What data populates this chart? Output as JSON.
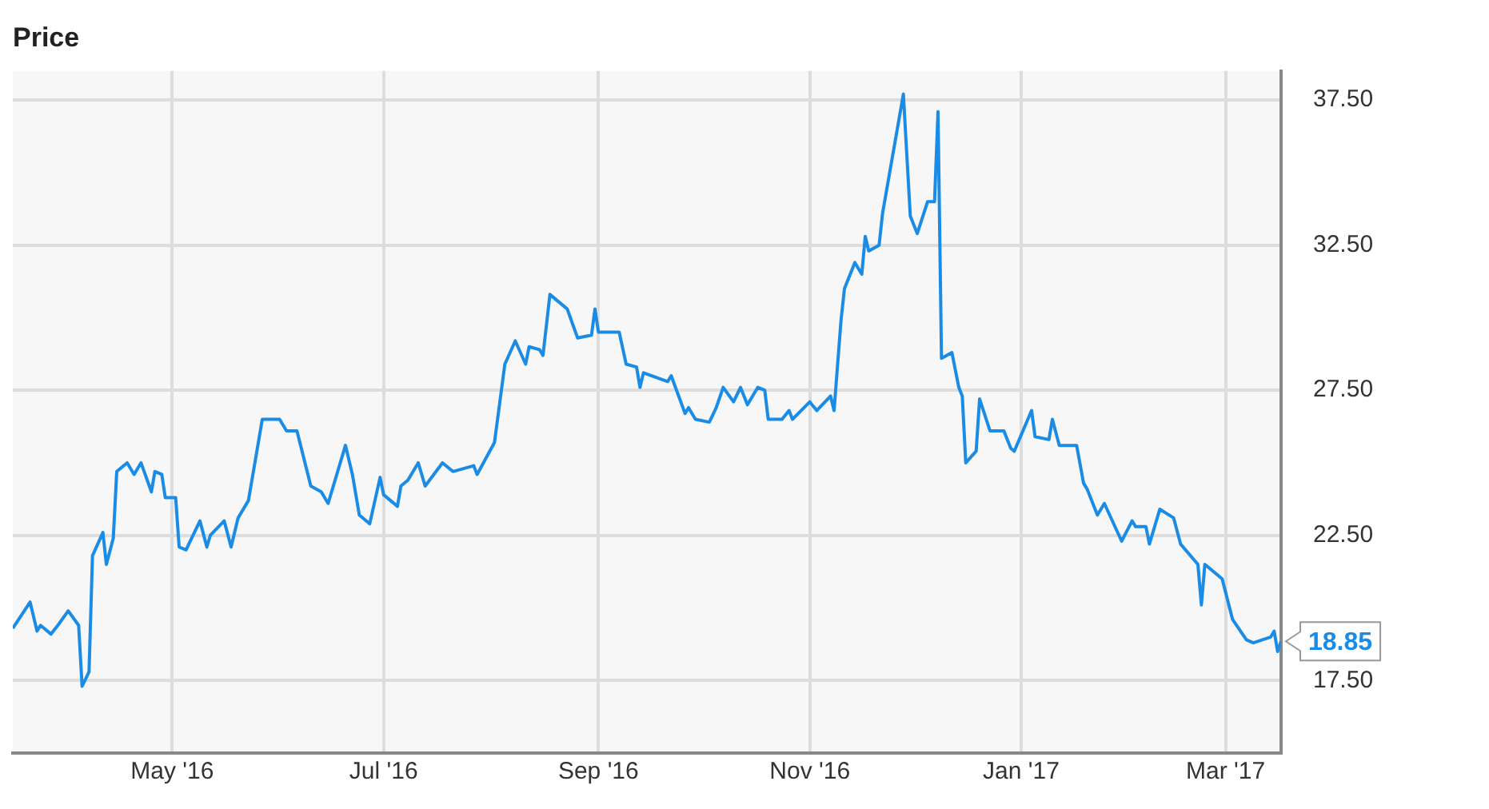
{
  "chart_data": {
    "type": "line",
    "title": "Price",
    "x": [
      "2016-03-16",
      "2016-03-21",
      "2016-03-23",
      "2016-03-24",
      "2016-03-27",
      "2016-03-29",
      "2016-04-01",
      "2016-04-04",
      "2016-04-05",
      "2016-04-07",
      "2016-04-08",
      "2016-04-11",
      "2016-04-12",
      "2016-04-14",
      "2016-04-15",
      "2016-04-18",
      "2016-04-20",
      "2016-04-22",
      "2016-04-25",
      "2016-04-26",
      "2016-04-28",
      "2016-04-29",
      "2016-05-02",
      "2016-05-03",
      "2016-05-05",
      "2016-05-09",
      "2016-05-11",
      "2016-05-12",
      "2016-05-16",
      "2016-05-18",
      "2016-05-20",
      "2016-05-23",
      "2016-05-25",
      "2016-05-27",
      "2016-06-01",
      "2016-06-03",
      "2016-06-06",
      "2016-06-10",
      "2016-06-13",
      "2016-06-15",
      "2016-06-20",
      "2016-06-22",
      "2016-06-24",
      "2016-06-27",
      "2016-06-30",
      "2016-07-01",
      "2016-07-05",
      "2016-07-06",
      "2016-07-08",
      "2016-07-11",
      "2016-07-13",
      "2016-07-18",
      "2016-07-21",
      "2016-07-27",
      "2016-07-28",
      "2016-08-02",
      "2016-08-05",
      "2016-08-08",
      "2016-08-11",
      "2016-08-12",
      "2016-08-15",
      "2016-08-16",
      "2016-08-18",
      "2016-08-22",
      "2016-08-23",
      "2016-08-26",
      "2016-08-30",
      "2016-08-31",
      "2016-09-01",
      "2016-09-07",
      "2016-09-09",
      "2016-09-12",
      "2016-09-13",
      "2016-09-14",
      "2016-09-21",
      "2016-09-22",
      "2016-09-26",
      "2016-09-27",
      "2016-09-29",
      "2016-10-03",
      "2016-10-05",
      "2016-10-07",
      "2016-10-10",
      "2016-10-12",
      "2016-10-14",
      "2016-10-17",
      "2016-10-19",
      "2016-10-20",
      "2016-10-24",
      "2016-10-26",
      "2016-10-27",
      "2016-11-01",
      "2016-11-03",
      "2016-11-07",
      "2016-11-08",
      "2016-11-10",
      "2016-11-11",
      "2016-11-14",
      "2016-11-16",
      "2016-11-17",
      "2016-11-18",
      "2016-11-21",
      "2016-11-22",
      "2016-11-28",
      "2016-11-30",
      "2016-12-02",
      "2016-12-05",
      "2016-12-07",
      "2016-12-08",
      "2016-12-09",
      "2016-12-12",
      "2016-12-14",
      "2016-12-15",
      "2016-12-16",
      "2016-12-19",
      "2016-12-20",
      "2016-12-23",
      "2016-12-27",
      "2016-12-29",
      "2016-12-30",
      "2017-01-04",
      "2017-01-05",
      "2017-01-09",
      "2017-01-10",
      "2017-01-12",
      "2017-01-17",
      "2017-01-19",
      "2017-01-20",
      "2017-01-23",
      "2017-01-25",
      "2017-01-30",
      "2017-02-02",
      "2017-02-03",
      "2017-02-06",
      "2017-02-07",
      "2017-02-10",
      "2017-02-14",
      "2017-02-16",
      "2017-02-21",
      "2017-02-22",
      "2017-02-23",
      "2017-02-28",
      "2017-03-03",
      "2017-03-07",
      "2017-03-09",
      "2017-03-14",
      "2017-03-15",
      "2017-03-16",
      "2017-03-17"
    ],
    "series": [
      {
        "color": "#1a8ce6",
        "values": [
          19.3,
          20.2,
          19.2,
          19.4,
          19.1,
          19.4,
          19.9,
          19.4,
          17.3,
          17.8,
          21.8,
          22.6,
          21.5,
          22.4,
          24.7,
          25.0,
          24.6,
          25.0,
          24.0,
          24.7,
          24.6,
          23.8,
          23.8,
          22.1,
          22.0,
          23.0,
          22.1,
          22.5,
          23.0,
          22.1,
          23.1,
          23.7,
          25.1,
          26.5,
          26.5,
          26.1,
          26.1,
          24.2,
          24.0,
          23.6,
          25.6,
          24.6,
          23.2,
          22.9,
          24.5,
          23.9,
          23.5,
          24.2,
          24.4,
          25.0,
          24.2,
          25.0,
          24.7,
          24.9,
          24.6,
          25.7,
          28.4,
          29.2,
          28.4,
          29.0,
          28.9,
          28.7,
          30.8,
          30.4,
          30.3,
          29.3,
          29.4,
          30.3,
          29.5,
          29.5,
          28.4,
          28.3,
          27.6,
          28.1,
          27.8,
          28.0,
          26.7,
          26.9,
          26.5,
          26.4,
          26.9,
          27.6,
          27.1,
          27.6,
          27.0,
          27.6,
          27.5,
          26.5,
          26.5,
          26.8,
          26.5,
          27.1,
          26.8,
          27.3,
          26.8,
          29.9,
          31.0,
          31.9,
          31.5,
          32.8,
          32.3,
          32.5,
          33.6,
          37.7,
          33.5,
          32.9,
          34.0,
          34.0,
          37.1,
          28.6,
          28.8,
          27.6,
          27.3,
          25.0,
          25.4,
          27.2,
          26.1,
          26.1,
          25.5,
          25.4,
          26.8,
          25.9,
          25.8,
          26.5,
          25.6,
          25.6,
          24.3,
          24.1,
          23.2,
          23.6,
          22.3,
          23.0,
          22.8,
          22.8,
          22.2,
          23.4,
          23.1,
          22.2,
          21.5,
          20.1,
          21.5,
          21.0,
          19.6,
          18.9,
          18.8,
          19.0,
          19.2,
          18.5,
          18.85
        ]
      }
    ],
    "xlim": [
      "2016-03-16",
      "2017-03-17"
    ],
    "xticks": [
      {
        "value": "2016-05-01",
        "label": "May '16"
      },
      {
        "value": "2016-07-01",
        "label": "Jul '16"
      },
      {
        "value": "2016-09-01",
        "label": "Sep '16"
      },
      {
        "value": "2016-11-01",
        "label": "Nov '16"
      },
      {
        "value": "2017-01-01",
        "label": "Jan '17"
      },
      {
        "value": "2017-03-01",
        "label": "Mar '17"
      }
    ],
    "ylim": [
      15,
      38.5
    ],
    "yticks": [
      {
        "value": 17.5,
        "label": "17.50"
      },
      {
        "value": 22.5,
        "label": "22.50"
      },
      {
        "value": 27.5,
        "label": "27.50"
      },
      {
        "value": 32.5,
        "label": "32.50"
      },
      {
        "value": 37.5,
        "label": "37.50"
      }
    ],
    "annotations": [
      {
        "text": "18.85",
        "x": "2017-03-17",
        "y": 18.85
      }
    ],
    "grid": true,
    "legend": false,
    "marker": "none",
    "line_style": "solid"
  }
}
